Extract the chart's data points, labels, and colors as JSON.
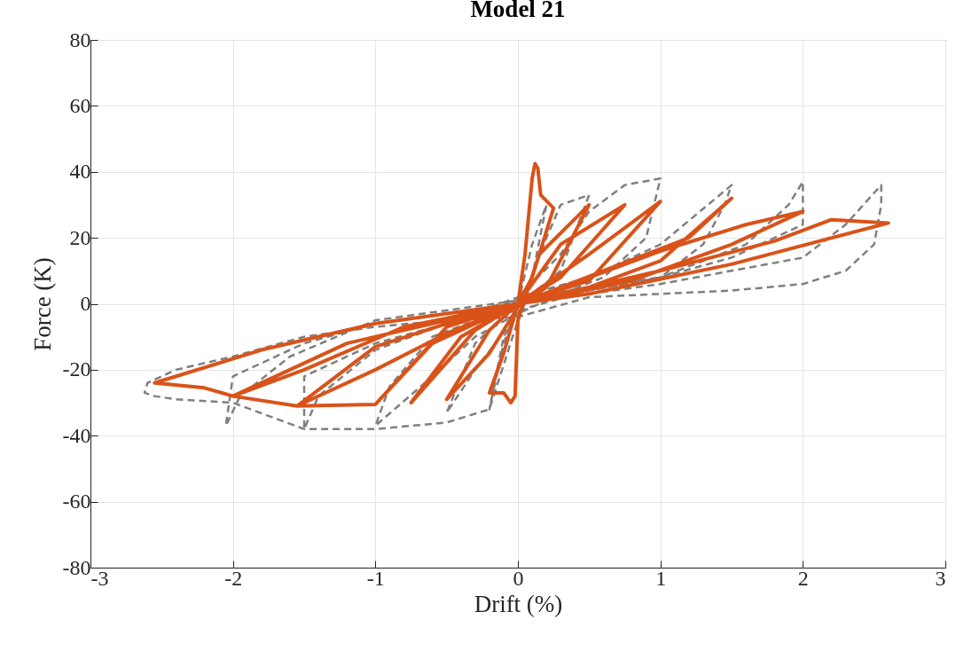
{
  "chart_data": {
    "type": "line",
    "title": "Model 21",
    "xlabel": "Drift (%)",
    "ylabel": "Force (K)",
    "xlim": [
      -3,
      3
    ],
    "ylim": [
      -80,
      80
    ],
    "xticks": [
      -3,
      -2,
      -1,
      0,
      1,
      2,
      3
    ],
    "yticks": [
      -80,
      -60,
      -40,
      -20,
      0,
      20,
      40,
      60,
      80
    ],
    "grid": true,
    "marker": "none",
    "series": [
      {
        "color": "#808080",
        "line_style": "dashed",
        "x": [
          0,
          0.1,
          0.2,
          0.1,
          0,
          -0.1,
          -0.2,
          -0.1,
          0,
          0.2,
          0.3,
          0.5,
          0.3,
          0.1,
          0,
          -0.3,
          -0.5,
          -0.3,
          -0.1,
          0,
          0.3,
          0.5,
          0.75,
          1.0,
          0.9,
          0.6,
          0.3,
          0,
          -0.3,
          -0.6,
          -1.0,
          -0.9,
          -0.6,
          -0.3,
          0,
          0.5,
          1.0,
          1.5,
          1.45,
          1.3,
          1.0,
          0.5,
          0,
          -0.5,
          -1.0,
          -1.5,
          -1.5,
          -1.4,
          -1.0,
          -0.5,
          0,
          0.5,
          1.0,
          1.5,
          2.0,
          2.0,
          1.9,
          1.6,
          1.0,
          0.5,
          0,
          -0.5,
          -1.0,
          -1.5,
          -2.0,
          -2.05,
          -1.95,
          -1.6,
          -1.0,
          -0.5,
          0,
          0.5,
          1.0,
          1.5,
          2.0,
          2.3,
          2.55,
          2.55,
          2.5,
          2.3,
          2.0,
          1.5,
          1.0,
          0.5,
          0,
          -0.5,
          -1.0,
          -1.5,
          -2.0,
          -2.4,
          -2.6,
          -2.62,
          -2.55,
          -2.4,
          -2.0,
          -1.5,
          -1.0,
          -0.5,
          -0.2,
          0
        ],
        "values": [
          0,
          18,
          30,
          8,
          0,
          -12,
          -32,
          -10,
          -3,
          20,
          30,
          33,
          10,
          3,
          -3,
          -20,
          -33,
          -12,
          -4,
          2,
          15,
          28,
          36,
          38,
          20,
          8,
          3,
          -3,
          -10,
          -22,
          -37,
          -25,
          -10,
          -5,
          2,
          8,
          18,
          36,
          30,
          18,
          8,
          4,
          -2,
          -6,
          -12,
          -22,
          -38,
          -28,
          -14,
          -6,
          2,
          5,
          8,
          14,
          24,
          37,
          30,
          18,
          8,
          4,
          0,
          -3,
          -6,
          -12,
          -22,
          -37,
          -28,
          -16,
          -5,
          -2,
          1,
          3,
          6,
          10,
          14,
          24,
          36,
          30,
          18,
          10,
          6,
          4,
          3,
          2,
          -4,
          -5,
          -7,
          -10,
          -16,
          -20,
          -24,
          -27,
          -28,
          -29,
          -30,
          -38,
          -38,
          -36,
          -32,
          -5
        ]
      },
      {
        "color": "#d95319",
        "line_style": "solid",
        "x": [
          0,
          0.05,
          0.1,
          0.12,
          0.14,
          0.16,
          0.25,
          0.1,
          0,
          -0.1,
          -0.2,
          -0.1,
          -0.05,
          -0.02,
          0,
          0.15,
          0.5,
          0.2,
          0,
          -0.2,
          -0.5,
          -0.2,
          0,
          0.3,
          0.75,
          0.3,
          0,
          -0.3,
          -0.75,
          -0.4,
          0,
          0.5,
          1.0,
          0.5,
          0,
          -0.5,
          -1.0,
          -0.6,
          -0.3,
          0,
          0.6,
          1.2,
          1.5,
          1.0,
          0.5,
          0,
          -0.5,
          -1.0,
          -1.55,
          -1.0,
          -0.5,
          0,
          1.0,
          1.6,
          2.0,
          1.5,
          0.8,
          0,
          -1.2,
          -2.0,
          -1.5,
          -0.8,
          0,
          1.0,
          1.8,
          2.2,
          2.6,
          1.5,
          0.5,
          0,
          -1.0,
          -1.8,
          -2.55,
          -2.2,
          -2.0,
          -1.55,
          -1.0
        ],
        "values": [
          0,
          15,
          38,
          42.5,
          41,
          33,
          29,
          8,
          0,
          -15,
          -27,
          -27,
          -30,
          -28,
          -5,
          15,
          30,
          5,
          -1,
          -15,
          -29,
          -8,
          0,
          18,
          30,
          8,
          0,
          -8,
          -30,
          -10,
          0,
          15,
          31,
          7,
          0,
          -7,
          -30.5,
          -12,
          -6,
          0,
          10,
          20,
          32,
          13,
          5,
          0,
          -6,
          -13,
          -31,
          -20,
          -9,
          0,
          16,
          24,
          28,
          18,
          7,
          0,
          -12,
          -28,
          -20,
          -7,
          0,
          10,
          19,
          25.5,
          24.5,
          12,
          3,
          0,
          -6,
          -14,
          -24,
          -25.5,
          -28,
          -31,
          -30.5
        ]
      }
    ]
  }
}
